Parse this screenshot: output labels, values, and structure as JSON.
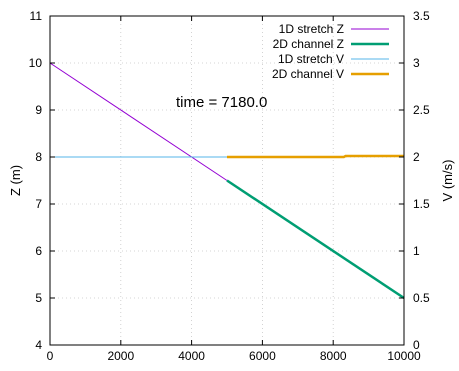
{
  "chart_data": {
    "type": "line",
    "xlabel": "",
    "ylabel": "Z (m)",
    "y2label": "V (m/s)",
    "xlim": [
      0,
      10000
    ],
    "ylim": [
      4,
      11
    ],
    "y2lim": [
      0,
      3.5
    ],
    "x_ticks": [
      "0",
      "2000",
      "4000",
      "6000",
      "8000",
      "10000"
    ],
    "y_ticks": [
      "4",
      "5",
      "6",
      "7",
      "8",
      "9",
      "10",
      "11"
    ],
    "y2_ticks": [
      "0",
      "0.5",
      "1",
      "1.5",
      "2",
      "2.5",
      "3",
      "3.5"
    ],
    "grid": true,
    "legend_position": "top-right",
    "annotation": "time = 7180.0",
    "series": [
      {
        "name": "1D stretch Z",
        "axis": "left",
        "color": "#9400d3",
        "width": 1,
        "x": [
          0,
          5000
        ],
        "y": [
          10.0,
          7.5
        ]
      },
      {
        "name": "2D channel Z",
        "axis": "left",
        "color": "#009e73",
        "width": 2.5,
        "x": [
          5000,
          10000
        ],
        "y": [
          7.5,
          5.0
        ]
      },
      {
        "name": "1D stretch V",
        "axis": "right",
        "color": "#56b4e9",
        "width": 1,
        "x": [
          0,
          5000
        ],
        "y": [
          2.0,
          2.0
        ]
      },
      {
        "name": "2D channel V",
        "axis": "right",
        "color": "#e69f00",
        "width": 2.5,
        "x": [
          5000,
          8300,
          8350,
          10000
        ],
        "y": [
          2.0,
          2.0,
          2.01,
          2.01
        ]
      }
    ]
  }
}
